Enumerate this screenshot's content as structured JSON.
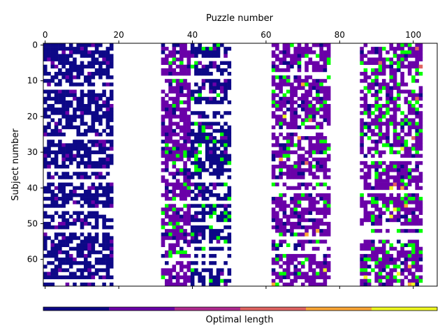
{
  "chart_data": {
    "type": "heatmap",
    "title": "",
    "xlabel": "Puzzle number",
    "ylabel": "Subject number",
    "x_ticks": [
      0,
      20,
      40,
      60,
      80,
      100
    ],
    "y_ticks": [
      0,
      10,
      20,
      30,
      40,
      50,
      60
    ],
    "xlim": [
      -0.5,
      106.5
    ],
    "ylim": [
      67.5,
      -0.5
    ],
    "n_puzzles": 107,
    "n_subjects": 68,
    "puzzle_blocks": [
      [
        0,
        18
      ],
      [
        32,
        39
      ],
      [
        40,
        50
      ],
      [
        62,
        77
      ],
      [
        86,
        102
      ]
    ],
    "empty_cells_estimated_fraction": 0.3,
    "colorbar": {
      "label": "Optimal length",
      "position": "bottom",
      "colors": [
        "#0d0887",
        "#6a00a8",
        "#b12a90",
        "#e16462",
        "#fca636",
        "#f0f921"
      ]
    },
    "cell_colors": {
      "block_0_18": "#0d0887",
      "block_32_39": "#6a00a8",
      "block_40_50": "#0d0887",
      "block_62_77": "#6a00a8",
      "block_86_102": "#6a00a8",
      "green": "#00ff00",
      "rare_bright": [
        "#fca636",
        "#f0f921",
        "#e16462"
      ]
    }
  }
}
